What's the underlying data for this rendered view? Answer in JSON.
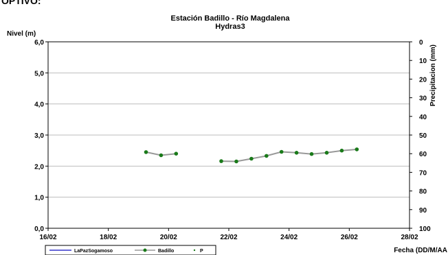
{
  "page": {
    "top_text": "OPTIVO:"
  },
  "chart_data": {
    "type": "line",
    "title": "Estación Badillo - Río Magdalena",
    "subtitle": "Hydras3",
    "ylabel": "Nivel (m)",
    "y2label": "Precipitacion (mm)",
    "xlabel": "Fecha (DD/M/AA",
    "ylim": [
      0,
      6
    ],
    "y2lim": [
      0,
      100
    ],
    "y2_reversed": true,
    "xlim": [
      "2000-02-16",
      "2000-02-28"
    ],
    "y_ticks": [
      "0,0",
      "1,0",
      "2,0",
      "3,0",
      "4,0",
      "5,0",
      "6,0"
    ],
    "y2_ticks": [
      "0",
      "10",
      "20",
      "30",
      "40",
      "50",
      "60",
      "70",
      "80",
      "90",
      "100"
    ],
    "x_ticks": [
      "16/02",
      "18/02",
      "20/02",
      "22/02",
      "24/02",
      "26/02",
      "28/02"
    ],
    "grid": "horizontal",
    "legend_position": "bottom",
    "series": [
      {
        "name": "LaPazSogamoso",
        "color": "#3333cc",
        "points": []
      },
      {
        "name": "Badillo",
        "color": "#999999",
        "marker_color": "#1a7a1a",
        "segments": [
          [
            {
              "x": "2000-02-19 06:00",
              "y": 2.45
            },
            {
              "x": "2000-02-19 18:00",
              "y": 2.35
            },
            {
              "x": "2000-02-20 06:00",
              "y": 2.4
            }
          ],
          [
            {
              "x": "2000-02-21 18:00",
              "y": 2.16
            },
            {
              "x": "2000-02-22 06:00",
              "y": 2.15
            },
            {
              "x": "2000-02-22 18:00",
              "y": 2.24
            },
            {
              "x": "2000-02-23 06:00",
              "y": 2.33
            },
            {
              "x": "2000-02-23 18:00",
              "y": 2.46
            },
            {
              "x": "2000-02-24 06:00",
              "y": 2.43
            },
            {
              "x": "2000-02-24 18:00",
              "y": 2.39
            },
            {
              "x": "2000-02-25 06:00",
              "y": 2.43
            },
            {
              "x": "2000-02-25 18:00",
              "y": 2.5
            },
            {
              "x": "2000-02-26 06:00",
              "y": 2.54
            }
          ]
        ]
      },
      {
        "name": "P",
        "color": "#1a7a1a",
        "points": []
      }
    ]
  }
}
